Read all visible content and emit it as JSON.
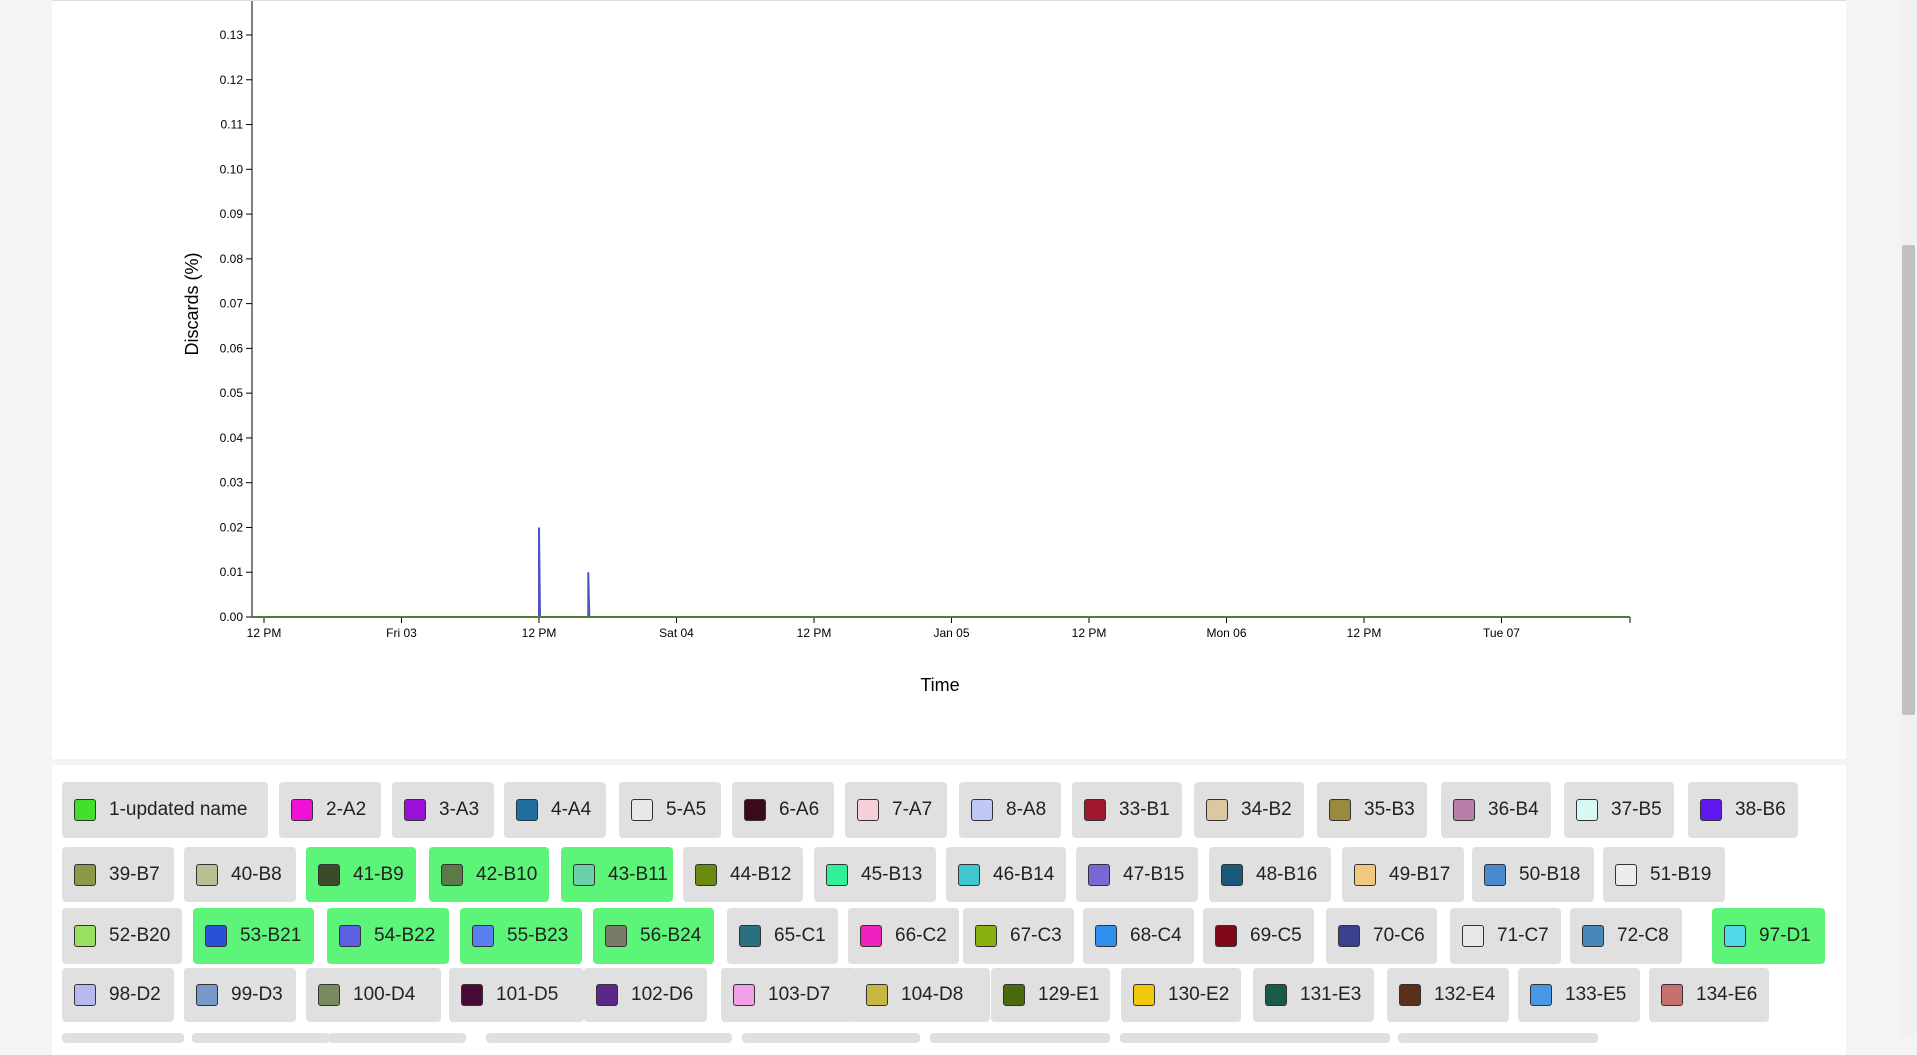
{
  "chart_data": {
    "type": "line",
    "ylabel": "Discards (%)",
    "xlabel": "Time",
    "ylim": [
      0,
      0.135
    ],
    "y_ticks": [
      "0.00",
      "0.01",
      "0.02",
      "0.03",
      "0.04",
      "0.05",
      "0.06",
      "0.07",
      "0.08",
      "0.09",
      "0.10",
      "0.11",
      "0.12",
      "0.13"
    ],
    "x_ticks": [
      "12 PM",
      "Fri 03",
      "12 PM",
      "Sat 04",
      "12 PM",
      "Jan 05",
      "12 PM",
      "Mon 06",
      "12 PM",
      "Tue 07"
    ],
    "x_tick_hours": [
      0,
      12,
      24,
      36,
      48,
      60,
      72,
      84,
      96,
      108
    ],
    "x_range_hours": [
      0,
      120
    ],
    "series": [
      {
        "color": "#4a56c8",
        "spikes": [
          {
            "hour": 24,
            "value": 0.02
          },
          {
            "hour": 28.3,
            "value": 0.01
          }
        ]
      },
      {
        "color": "#567a32",
        "spikes": []
      }
    ]
  },
  "legend": [
    {
      "label": "1-updated name",
      "color": "#43e02a",
      "selected": false
    },
    {
      "label": "2-A2",
      "color": "#f010d8",
      "selected": false
    },
    {
      "label": "3-A3",
      "color": "#9a10d8",
      "selected": false
    },
    {
      "label": "4-A4",
      "color": "#1f6fa0",
      "selected": false
    },
    {
      "label": "5-A5",
      "color": "#e8e8e8",
      "selected": false
    },
    {
      "label": "6-A6",
      "color": "#3a0a1a",
      "selected": false
    },
    {
      "label": "7-A7",
      "color": "#f5d0d8",
      "selected": false
    },
    {
      "label": "8-A8",
      "color": "#c0c8f5",
      "selected": false
    },
    {
      "label": "33-B1",
      "color": "#a01830",
      "selected": false
    },
    {
      "label": "34-B2",
      "color": "#dcc8a0",
      "selected": false
    },
    {
      "label": "35-B3",
      "color": "#9a8a40",
      "selected": false
    },
    {
      "label": "36-B4",
      "color": "#b880a8",
      "selected": false
    },
    {
      "label": "37-B5",
      "color": "#d8f8f5",
      "selected": false
    },
    {
      "label": "38-B6",
      "color": "#6018f0",
      "selected": false
    },
    {
      "label": "39-B7",
      "color": "#8a9a48",
      "selected": false
    },
    {
      "label": "40-B8",
      "color": "#b8c090",
      "selected": false
    },
    {
      "label": "41-B9",
      "color": "#3a4a2a",
      "selected": true
    },
    {
      "label": "42-B10",
      "color": "#5a7a48",
      "selected": true
    },
    {
      "label": "43-B11",
      "color": "#6ad0a8",
      "selected": true
    },
    {
      "label": "44-B12",
      "color": "#6a8a10",
      "selected": false
    },
    {
      "label": "45-B13",
      "color": "#30f098",
      "selected": false
    },
    {
      "label": "46-B14",
      "color": "#40c8d0",
      "selected": false
    },
    {
      "label": "47-B15",
      "color": "#7a68d8",
      "selected": false
    },
    {
      "label": "48-B16",
      "color": "#1a5a78",
      "selected": false
    },
    {
      "label": "49-B17",
      "color": "#f0c880",
      "selected": false
    },
    {
      "label": "50-B18",
      "color": "#4a88d0",
      "selected": false
    },
    {
      "label": "51-B19",
      "color": "#ececec",
      "selected": false
    },
    {
      "label": "52-B20",
      "color": "#98e060",
      "selected": false
    },
    {
      "label": "53-B21",
      "color": "#2a50d8",
      "selected": true
    },
    {
      "label": "54-B22",
      "color": "#5a60e0",
      "selected": true
    },
    {
      "label": "55-B23",
      "color": "#5a80f0",
      "selected": true
    },
    {
      "label": "56-B24",
      "color": "#7a7a68",
      "selected": true
    },
    {
      "label": "65-C1",
      "color": "#2a7080",
      "selected": false
    },
    {
      "label": "66-C2",
      "color": "#f020c0",
      "selected": false
    },
    {
      "label": "67-C3",
      "color": "#8ab010",
      "selected": false
    },
    {
      "label": "68-C4",
      "color": "#3090f0",
      "selected": false
    },
    {
      "label": "69-C5",
      "color": "#800818",
      "selected": false
    },
    {
      "label": "70-C6",
      "color": "#3a4090",
      "selected": false
    },
    {
      "label": "71-C7",
      "color": "#e8e8e8",
      "selected": false
    },
    {
      "label": "72-C8",
      "color": "#4888b8",
      "selected": false
    },
    {
      "label": "97-D1",
      "color": "#50d8e8",
      "selected": true
    },
    {
      "label": "98-D2",
      "color": "#b8b8f0",
      "selected": false
    },
    {
      "label": "99-D3",
      "color": "#7898c8",
      "selected": false
    },
    {
      "label": "100-D4",
      "color": "#7a8a60",
      "selected": false
    },
    {
      "label": "101-D5",
      "color": "#4a0a38",
      "selected": false
    },
    {
      "label": "102-D6",
      "color": "#5a2888",
      "selected": false
    },
    {
      "label": "103-D7",
      "color": "#f0a0e8",
      "selected": false
    },
    {
      "label": "104-D8",
      "color": "#c8b840",
      "selected": false
    },
    {
      "label": "129-E1",
      "color": "#4a6a10",
      "selected": false
    },
    {
      "label": "130-E2",
      "color": "#f0c810",
      "selected": false
    },
    {
      "label": "131-E3",
      "color": "#1a5a48",
      "selected": false
    },
    {
      "label": "132-E4",
      "color": "#5a3018",
      "selected": false
    },
    {
      "label": "133-E5",
      "color": "#4898e8",
      "selected": false
    },
    {
      "label": "134-E6",
      "color": "#c87070",
      "selected": false
    }
  ]
}
